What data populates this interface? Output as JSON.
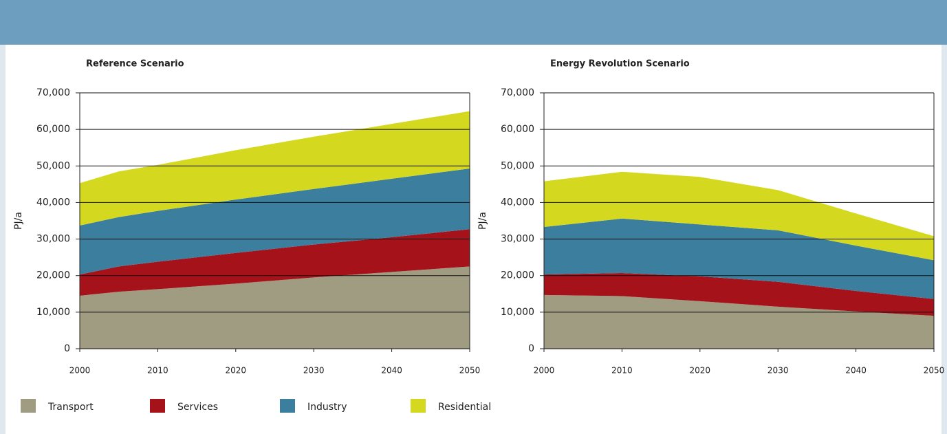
{
  "chart_data": [
    {
      "type": "area",
      "title": "Reference Scenario",
      "y_label": "PJ/a",
      "x": [
        2000,
        2005,
        2010,
        2020,
        2030,
        2040,
        2050
      ],
      "xlim": [
        2000,
        2050
      ],
      "xticks": [
        2000,
        2010,
        2020,
        2030,
        2040,
        2050
      ],
      "ylim": [
        0,
        70000
      ],
      "yticks": [
        0,
        {
          "value": 10000,
          "label": "10,000"
        },
        {
          "value": 20000,
          "label": "20,000"
        },
        {
          "value": 30000,
          "label": "30,000"
        },
        {
          "value": 40000,
          "label": "40,000"
        },
        {
          "value": 50000,
          "label": "50,000"
        },
        {
          "value": 60000,
          "label": "60,000"
        },
        {
          "value": 70000,
          "label": "70,000"
        }
      ],
      "grid": true,
      "stacked": true,
      "series": [
        {
          "name": "Transport",
          "color": "#a09c82",
          "values": [
            14500,
            15600,
            16300,
            17800,
            19500,
            21000,
            22500
          ]
        },
        {
          "name": "Services",
          "color": "#a6121a",
          "values": [
            5800,
            6900,
            7500,
            8400,
            9000,
            9500,
            10200
          ]
        },
        {
          "name": "Industry",
          "color": "#3b7e9e",
          "values": [
            13400,
            13500,
            13900,
            14600,
            15200,
            16000,
            16600
          ]
        },
        {
          "name": "Residential",
          "color": "#d4d920",
          "values": [
            11600,
            12500,
            12600,
            13500,
            14300,
            15000,
            15700
          ]
        }
      ]
    },
    {
      "type": "area",
      "title": "Energy Revolution Scenario",
      "y_label": "PJ/a",
      "x": [
        2000,
        2010,
        2020,
        2030,
        2040,
        2050
      ],
      "xlim": [
        2000,
        2050
      ],
      "xticks": [
        2000,
        2010,
        2020,
        2030,
        2040,
        2050
      ],
      "ylim": [
        0,
        70000
      ],
      "yticks": [
        0,
        {
          "value": 10000,
          "label": "10,000"
        },
        {
          "value": 20000,
          "label": "20,000"
        },
        {
          "value": 30000,
          "label": "30,000"
        },
        {
          "value": 40000,
          "label": "40,000"
        },
        {
          "value": 50000,
          "label": "50,000"
        },
        {
          "value": 60000,
          "label": "60,000"
        },
        {
          "value": 70000,
          "label": "70,000"
        }
      ],
      "grid": true,
      "stacked": true,
      "series": [
        {
          "name": "Transport",
          "color": "#a09c82",
          "values": [
            14700,
            14400,
            13000,
            11500,
            10200,
            9000
          ]
        },
        {
          "name": "Services",
          "color": "#a6121a",
          "values": [
            5600,
            6300,
            6800,
            6800,
            5600,
            4600
          ]
        },
        {
          "name": "Industry",
          "color": "#3b7e9e",
          "values": [
            13000,
            14900,
            14200,
            14100,
            12400,
            10600
          ]
        },
        {
          "name": "Residential",
          "color": "#d4d920",
          "values": [
            12500,
            12800,
            13000,
            11000,
            8800,
            6600
          ]
        }
      ]
    }
  ]
}
